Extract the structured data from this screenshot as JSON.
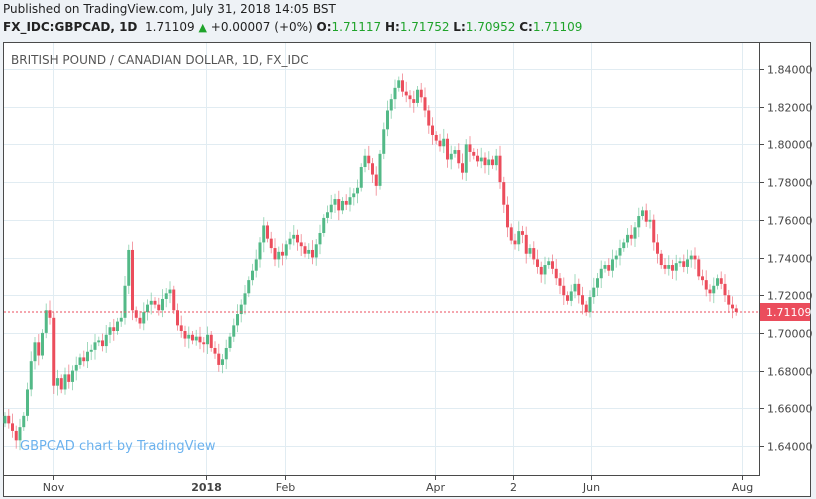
{
  "header": {
    "published": "Published on TradingView.com, July 31, 2018 14:05 BST",
    "symbol": "FX_IDC:GBPCAD, 1D",
    "last": "1.71109",
    "change": "+0.00007 (+0%)",
    "o_label": "O:",
    "o": "1.71117",
    "h_label": "H:",
    "h": "1.71752",
    "l_label": "L:",
    "l": "1.70952",
    "c_label": "C:",
    "c": "1.71109",
    "change_direction": "up-triangle-icon"
  },
  "chart_title": "BRITISH POUND / CANADIAN DOLLAR, 1D, FX_IDC",
  "watermark": "GBPCAD chart by TradingView",
  "colors": {
    "up": "#53b987",
    "down": "#eb4d5c",
    "grid": "#e1ecf2",
    "price_tag": "#eb4d5c"
  },
  "chart_data": {
    "type": "candlestick",
    "title": "BRITISH POUND / CANADIAN DOLLAR, 1D, FX_IDC",
    "ylim": [
      1.625,
      1.855
    ],
    "y_ticks": [
      "1.84000",
      "1.82000",
      "1.80000",
      "1.78000",
      "1.76000",
      "1.74000",
      "1.72000",
      "1.70000",
      "1.68000",
      "1.66000",
      "1.64000"
    ],
    "x_ticks": [
      {
        "label": "Nov",
        "at_index": 12.8,
        "bold": false
      },
      {
        "label": "2018",
        "at_index": 53.6,
        "bold": true
      },
      {
        "label": "Feb",
        "at_index": 74.7,
        "bold": false
      },
      {
        "label": "Apr",
        "at_index": 114.7,
        "bold": false
      },
      {
        "label": "2",
        "at_index": 135.5,
        "bold": false
      },
      {
        "label": "Jun",
        "at_index": 156.3,
        "bold": false
      },
      {
        "label": "Aug",
        "at_index": 196.5,
        "bold": false
      }
    ],
    "grid": true,
    "last_price_label": "1.71109",
    "last_price": 1.71109,
    "first_open": 1.652,
    "closes": [
      1.656,
      1.652,
      1.648,
      1.643,
      1.65,
      1.656,
      1.67,
      1.685,
      1.695,
      1.688,
      1.7,
      1.712,
      1.708,
      1.672,
      1.676,
      1.67,
      1.678,
      1.674,
      1.68,
      1.683,
      1.687,
      1.685,
      1.69,
      1.691,
      1.695,
      1.696,
      1.693,
      1.699,
      1.703,
      1.701,
      1.706,
      1.708,
      1.725,
      1.744,
      1.712,
      1.708,
      1.705,
      1.711,
      1.715,
      1.717,
      1.715,
      1.712,
      1.718,
      1.721,
      1.723,
      1.712,
      1.704,
      1.701,
      1.697,
      1.699,
      1.696,
      1.698,
      1.695,
      1.694,
      1.699,
      1.692,
      1.689,
      1.683,
      1.686,
      1.692,
      1.698,
      1.704,
      1.71,
      1.715,
      1.721,
      1.728,
      1.733,
      1.739,
      1.748,
      1.757,
      1.75,
      1.745,
      1.739,
      1.743,
      1.741,
      1.747,
      1.75,
      1.752,
      1.748,
      1.746,
      1.742,
      1.744,
      1.74,
      1.747,
      1.753,
      1.761,
      1.764,
      1.768,
      1.771,
      1.765,
      1.77,
      1.768,
      1.772,
      1.774,
      1.777,
      1.788,
      1.794,
      1.79,
      1.784,
      1.778,
      1.795,
      1.808,
      1.818,
      1.824,
      1.83,
      1.834,
      1.828,
      1.826,
      1.824,
      1.822,
      1.829,
      1.825,
      1.818,
      1.81,
      1.805,
      1.802,
      1.799,
      1.803,
      1.792,
      1.795,
      1.797,
      1.79,
      1.785,
      1.8,
      1.796,
      1.794,
      1.791,
      1.793,
      1.789,
      1.792,
      1.789,
      1.794,
      1.78,
      1.768,
      1.756,
      1.749,
      1.747,
      1.754,
      1.752,
      1.742,
      1.745,
      1.739,
      1.735,
      1.731,
      1.736,
      1.738,
      1.734,
      1.729,
      1.725,
      1.72,
      1.717,
      1.722,
      1.726,
      1.72,
      1.715,
      1.711,
      1.719,
      1.724,
      1.729,
      1.734,
      1.736,
      1.733,
      1.739,
      1.741,
      1.745,
      1.748,
      1.752,
      1.75,
      1.756,
      1.762,
      1.765,
      1.759,
      1.76,
      1.748,
      1.742,
      1.736,
      1.734,
      1.736,
      1.733,
      1.737,
      1.738,
      1.735,
      1.739,
      1.741,
      1.739,
      1.73,
      1.728,
      1.723,
      1.721,
      1.725,
      1.729,
      1.726,
      1.72,
      1.715,
      1.713,
      1.71109
    ]
  }
}
